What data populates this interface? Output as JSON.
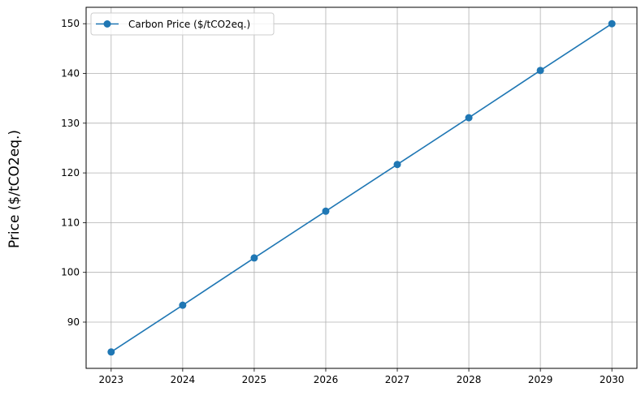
{
  "chart_data": {
    "type": "line",
    "title": "",
    "xlabel": "",
    "ylabel": "Price ($/tCO2eq.)",
    "x": [
      2023,
      2024,
      2025,
      2026,
      2027,
      2028,
      2029,
      2030
    ],
    "xticks": [
      2023,
      2024,
      2025,
      2026,
      2027,
      2028,
      2029,
      2030
    ],
    "yticks": [
      90,
      100,
      110,
      120,
      130,
      140,
      150
    ],
    "xlim": [
      2022.65,
      2030.35
    ],
    "ylim": [
      80.7,
      153.3
    ],
    "grid": true,
    "legend_position": "top-left",
    "series": [
      {
        "name": "Carbon Price ($/tCO2eq.)",
        "color": "#1f77b4",
        "marker": "circle",
        "values": [
          84.0,
          93.4,
          102.9,
          112.3,
          121.7,
          131.1,
          140.6,
          150.0
        ]
      }
    ]
  }
}
